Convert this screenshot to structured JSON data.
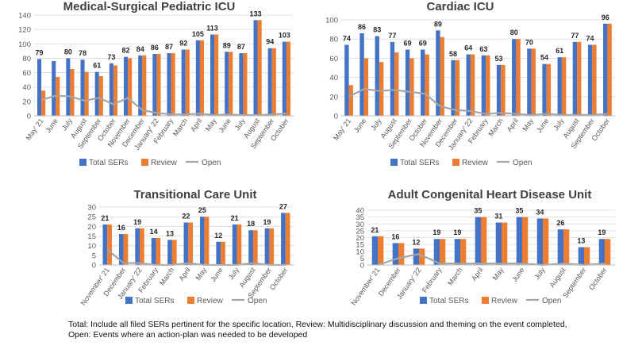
{
  "colors": {
    "total": "#4472C4",
    "review": "#ED7D31",
    "open": "#A5A5A5",
    "grid": "#D9D9D9",
    "axis": "#595959"
  },
  "legend_labels": [
    "Total SERs",
    "Review",
    "Open"
  ],
  "footnote": {
    "line1": "Total: Include all filed SERs pertinent for the specific location, Review: Multidisciplinary discussion and theming  on the event completed,",
    "line2": "Open: Events where an action-plan was needed to be developed"
  },
  "chart_data": [
    {
      "type": "bar",
      "title": "Medical-Surgical Pediatric ICU",
      "categories": [
        "May' 21",
        "June",
        "July",
        "August",
        "September",
        "October",
        "November",
        "December",
        "January' 22",
        "February",
        "March",
        "April",
        "May",
        "June",
        "July",
        "August",
        "September",
        "October"
      ],
      "series": [
        {
          "name": "Total SERs",
          "values": [
            79,
            76,
            80,
            78,
            61,
            73,
            82,
            84,
            86,
            87,
            92,
            105,
            113,
            89,
            87,
            133,
            94,
            103
          ]
        },
        {
          "name": "Review",
          "values": [
            35,
            54,
            65,
            61,
            55,
            70,
            80,
            84,
            86,
            87,
            92,
            105,
            113,
            89,
            87,
            133,
            94,
            103
          ]
        },
        {
          "name": "Open",
          "values": [
            22,
            28,
            27,
            21,
            25,
            16,
            25,
            8,
            4,
            2,
            2,
            3,
            1,
            2,
            1,
            1,
            2,
            3
          ]
        }
      ],
      "data_labels": [
        79,
        null,
        80,
        78,
        61,
        73,
        82,
        84,
        86,
        87,
        92,
        105,
        113,
        89,
        87,
        133,
        94,
        103
      ],
      "ylim": [
        0,
        140
      ],
      "ytick_step": 20
    },
    {
      "type": "bar",
      "title": "Cardiac ICU",
      "categories": [
        "May' 21",
        "June",
        "July",
        "August",
        "September",
        "October",
        "November",
        "December",
        "January' 22",
        "February",
        "March",
        "April",
        "May",
        "June",
        "July",
        "August",
        "September",
        "October"
      ],
      "series": [
        {
          "name": "Total SERs",
          "values": [
            74,
            86,
            83,
            77,
            69,
            69,
            89,
            58,
            64,
            63,
            53,
            80,
            70,
            54,
            61,
            77,
            74,
            96
          ]
        },
        {
          "name": "Review",
          "values": [
            32,
            60,
            56,
            66,
            60,
            64,
            82,
            58,
            64,
            63,
            53,
            80,
            70,
            54,
            61,
            77,
            74,
            96
          ]
        },
        {
          "name": "Open",
          "values": [
            20,
            28,
            26,
            27,
            25,
            23,
            10,
            6,
            5,
            2,
            3,
            2,
            1,
            2,
            1,
            1,
            1,
            2
          ]
        }
      ],
      "data_labels": [
        74,
        86,
        83,
        77,
        69,
        69,
        89,
        58,
        64,
        63,
        53,
        80,
        70,
        54,
        61,
        77,
        74,
        96
      ],
      "ylim": [
        0,
        100
      ],
      "ytick_step": 20
    },
    {
      "type": "bar",
      "title": "Transitional Care Unit",
      "categories": [
        "November' 21",
        "December",
        "January' 22",
        "February",
        "March",
        "April",
        "May",
        "June",
        "July",
        "August",
        "September",
        "October"
      ],
      "series": [
        {
          "name": "Total SERs",
          "values": [
            21,
            16,
            19,
            14,
            13,
            22,
            25,
            12,
            21,
            18,
            19,
            27
          ]
        },
        {
          "name": "Review",
          "values": [
            21,
            16,
            19,
            14,
            13,
            22,
            25,
            12,
            21,
            18,
            19,
            27
          ]
        },
        {
          "name": "Open",
          "values": [
            8,
            1,
            1,
            0,
            0,
            1,
            0,
            0,
            0,
            1,
            0,
            0
          ]
        }
      ],
      "data_labels": [
        21,
        16,
        19,
        14,
        13,
        22,
        25,
        12,
        21,
        18,
        19,
        27
      ],
      "ylim": [
        0,
        30
      ],
      "ytick_step": 5
    },
    {
      "type": "bar",
      "title": "Adult Congenital Heart Disease Unit",
      "categories": [
        "November' 21",
        "December",
        "January' 22",
        "February",
        "March",
        "April",
        "May",
        "June",
        "July",
        "August",
        "September",
        "October"
      ],
      "series": [
        {
          "name": "Total SERs",
          "values": [
            21,
            16,
            12,
            19,
            19,
            35,
            31,
            35,
            34,
            26,
            13,
            19
          ]
        },
        {
          "name": "Review",
          "values": [
            21,
            16,
            12,
            19,
            19,
            35,
            31,
            35,
            34,
            26,
            13,
            19
          ]
        },
        {
          "name": "Open",
          "values": [
            0,
            5,
            8,
            1,
            1,
            1,
            1,
            1,
            0,
            1,
            0,
            1
          ]
        }
      ],
      "data_labels": [
        21,
        16,
        12,
        19,
        19,
        35,
        31,
        35,
        34,
        26,
        13,
        19
      ],
      "ylim": [
        0,
        40
      ],
      "ytick_step": 5
    }
  ]
}
